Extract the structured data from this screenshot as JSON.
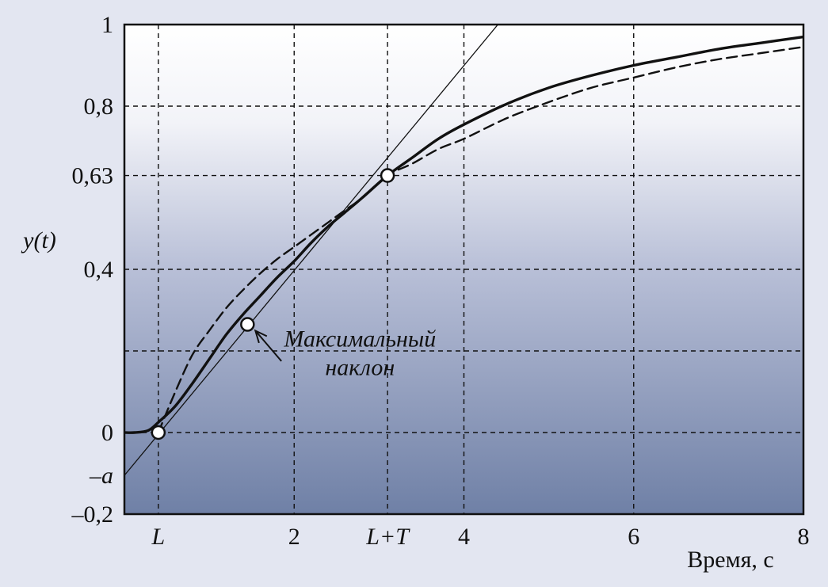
{
  "chart_data": {
    "type": "line",
    "title": "",
    "ylabel": "y(t)",
    "xlabel": "Время, с",
    "xlim": [
      0,
      8
    ],
    "ylim": [
      -0.2,
      1
    ],
    "grid": "dashed",
    "x_ticks": [
      {
        "value": 0.4,
        "label": "L",
        "italic": true
      },
      {
        "value": 2,
        "label": "2",
        "italic": false
      },
      {
        "value": 3.1,
        "label": "L+T",
        "italic": true
      },
      {
        "value": 4,
        "label": "4",
        "italic": false
      },
      {
        "value": 6,
        "label": "6",
        "italic": false
      },
      {
        "value": 8,
        "label": "8",
        "italic": false
      }
    ],
    "y_ticks": [
      {
        "value": 1,
        "label": "1",
        "italic": false
      },
      {
        "value": 0.8,
        "label": "0,8",
        "italic": false
      },
      {
        "value": 0.63,
        "label": "0,63",
        "italic": false
      },
      {
        "value": 0.4,
        "label": "0,4",
        "italic": false
      },
      {
        "value": 0,
        "label": "0",
        "italic": false
      },
      {
        "value": -0.105,
        "label": "–a",
        "italic": true
      },
      {
        "value": -0.2,
        "label": "–0,2",
        "italic": false
      }
    ],
    "extra_grid_y": [
      0.2
    ],
    "series": [
      {
        "style": "solid-thick",
        "x": [
          0,
          0.12,
          0.28,
          0.4,
          0.6,
          0.8,
          1.0,
          1.2,
          1.4,
          1.6,
          1.8,
          2.0,
          2.2,
          2.4,
          2.6,
          2.8,
          3.1,
          3.4,
          3.7,
          4.0,
          4.5,
          5.0,
          5.5,
          6.0,
          6.5,
          7.0,
          7.5,
          8.0
        ],
        "y": [
          0,
          0,
          0.005,
          0.025,
          0.065,
          0.12,
          0.18,
          0.24,
          0.29,
          0.335,
          0.38,
          0.42,
          0.465,
          0.505,
          0.54,
          0.575,
          0.63,
          0.675,
          0.72,
          0.755,
          0.805,
          0.845,
          0.875,
          0.9,
          0.92,
          0.94,
          0.955,
          0.97
        ]
      },
      {
        "style": "dashed",
        "x": [
          0.4,
          0.6,
          0.8,
          1.0,
          1.2,
          1.4,
          1.6,
          1.8,
          2.0,
          2.2,
          2.4,
          2.6,
          2.8,
          3.1,
          3.4,
          3.7,
          4.0,
          4.5,
          5.0,
          5.5,
          6.0,
          6.5,
          7.0,
          7.5,
          8.0
        ],
        "y": [
          0,
          0.1,
          0.19,
          0.25,
          0.305,
          0.35,
          0.39,
          0.425,
          0.455,
          0.485,
          0.515,
          0.545,
          0.575,
          0.63,
          0.66,
          0.695,
          0.72,
          0.77,
          0.81,
          0.845,
          0.87,
          0.895,
          0.915,
          0.93,
          0.945
        ]
      },
      {
        "style": "thin",
        "x": [
          0,
          4.4
        ],
        "y": [
          -0.105,
          1.0
        ]
      }
    ],
    "points": [
      {
        "x": 0.4,
        "y": 0
      },
      {
        "x": 1.45,
        "y": 0.265
      },
      {
        "x": 3.1,
        "y": 0.63
      }
    ],
    "annotation": {
      "lines": [
        "Максимальный",
        "наклон"
      ],
      "arrow_to": {
        "x": 1.45,
        "y": 0.265
      },
      "arrow_from": {
        "x": 1.85,
        "y": 0.175
      },
      "anchor": {
        "x": 2.85,
        "y": 0.11
      }
    }
  }
}
